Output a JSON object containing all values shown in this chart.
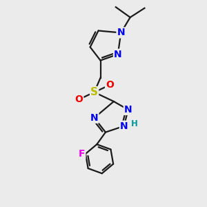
{
  "bg_color": "#ebebeb",
  "bond_color": "#1a1a1a",
  "bond_width": 1.6,
  "atom_colors": {
    "N": "#0000ee",
    "O": "#ee0000",
    "S": "#bbbb00",
    "F": "#ee00ee",
    "H": "#009999",
    "C": "#1a1a1a"
  },
  "font_size_atom": 10,
  "font_size_small": 8.5
}
